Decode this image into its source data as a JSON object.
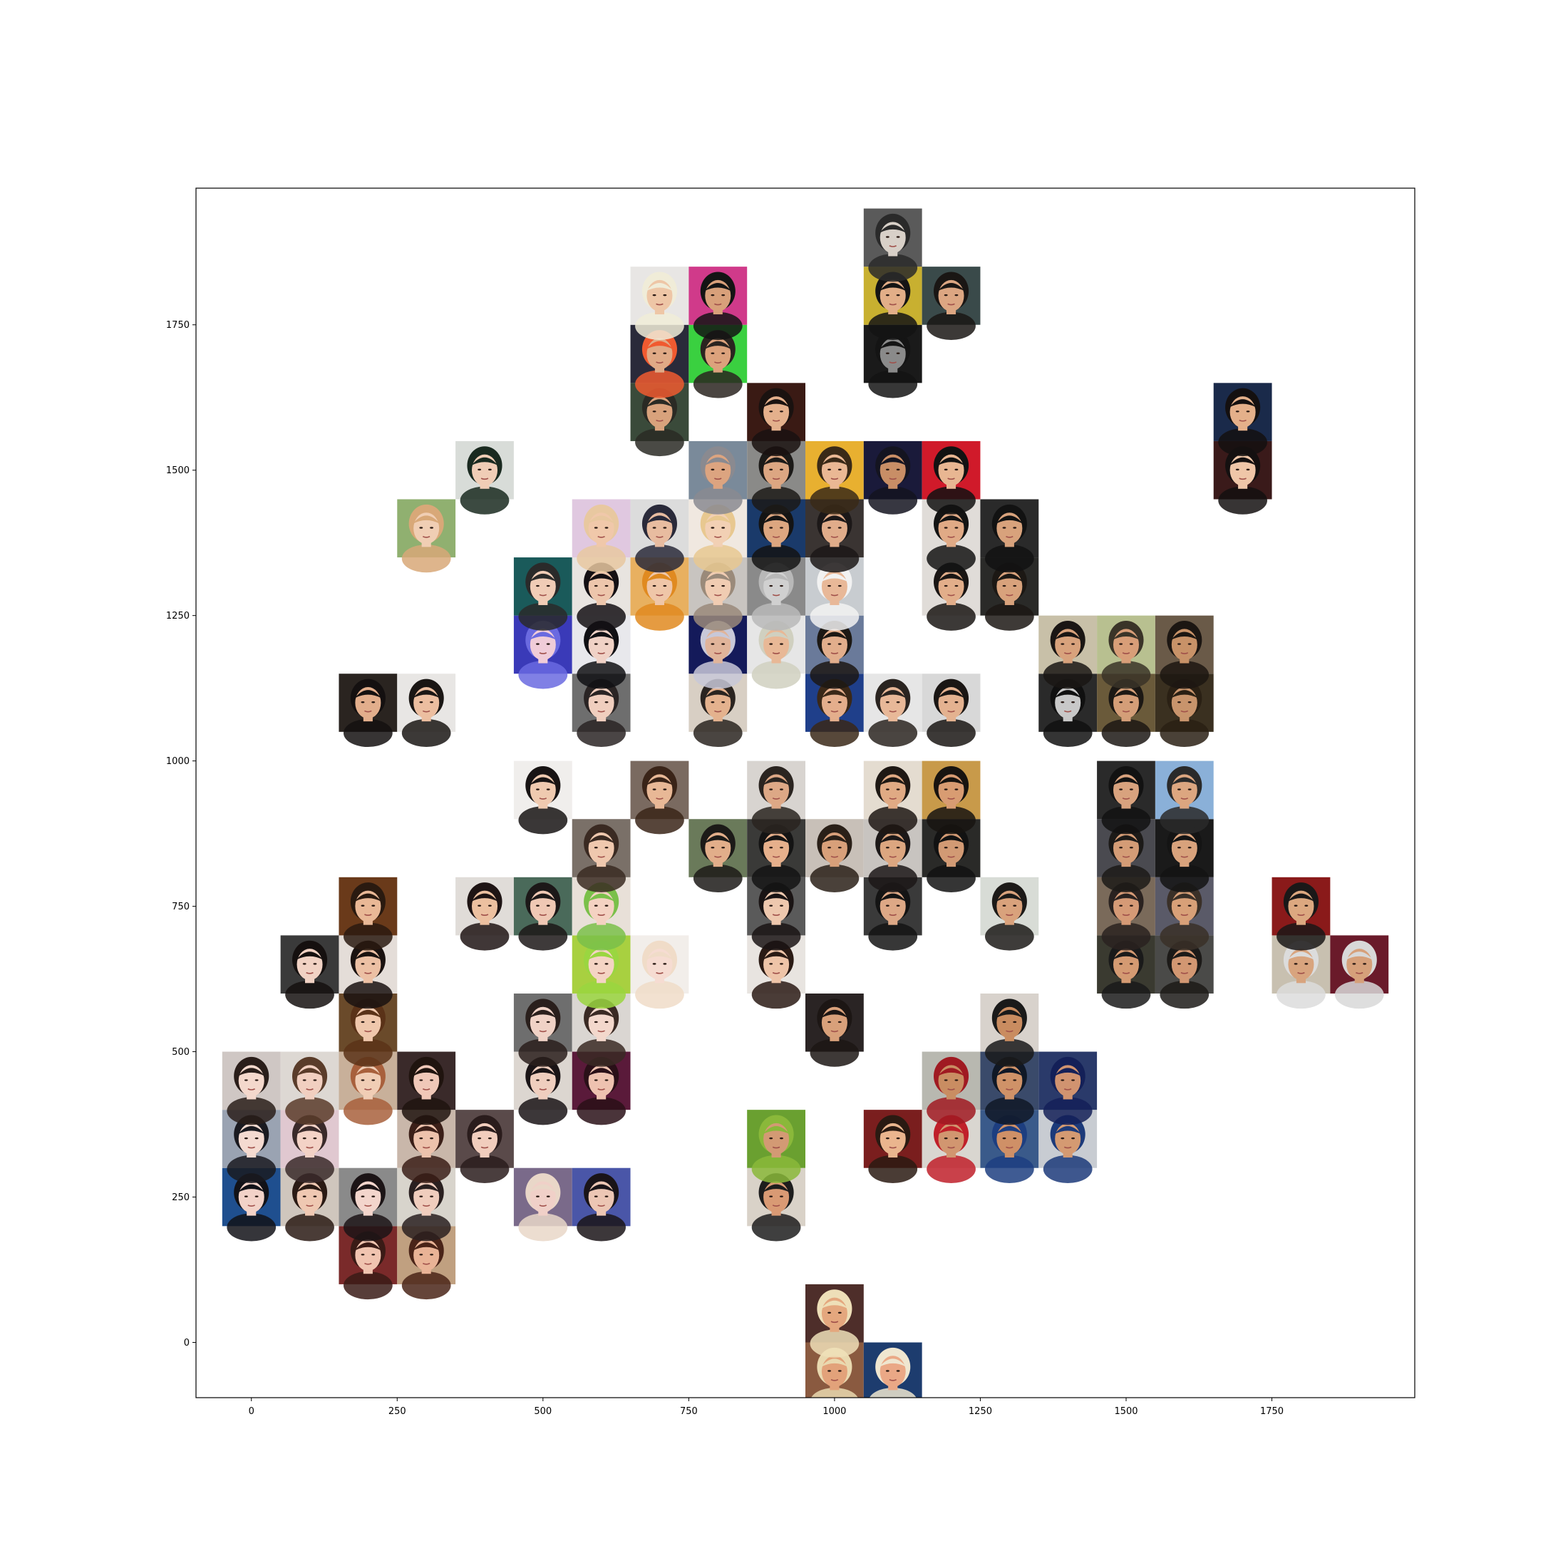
{
  "chart_data": {
    "type": "scatter",
    "marker": "face-thumbnail-image",
    "tile_size": 100,
    "title": "",
    "xlabel": "",
    "ylabel": "",
    "xlim": [
      -95,
      1995
    ],
    "ylim": [
      -95,
      1985
    ],
    "grid": false,
    "legend": "none",
    "xticks": [
      {
        "value": 0,
        "label": "0"
      },
      {
        "value": 250,
        "label": "250"
      },
      {
        "value": 500,
        "label": "500"
      },
      {
        "value": 750,
        "label": "750"
      },
      {
        "value": 1000,
        "label": "1000"
      },
      {
        "value": 1250,
        "label": "1250"
      },
      {
        "value": 1500,
        "label": "1500"
      },
      {
        "value": 1750,
        "label": "1750"
      }
    ],
    "yticks": [
      {
        "value": 0,
        "label": "0"
      },
      {
        "value": 250,
        "label": "250"
      },
      {
        "value": 500,
        "label": "500"
      },
      {
        "value": 750,
        "label": "750"
      },
      {
        "value": 1000,
        "label": "1000"
      },
      {
        "value": 1250,
        "label": "1250"
      },
      {
        "value": 1500,
        "label": "1500"
      },
      {
        "value": 1750,
        "label": "1750"
      }
    ],
    "points": [
      {
        "x": 1000,
        "y": -50,
        "bg": "#8a5a40",
        "skin": "#e2a27a",
        "hair": "#e9d9b0"
      },
      {
        "x": 1100,
        "y": -50,
        "bg": "#1d3c6e",
        "skin": "#eaa886",
        "hair": "#efe6d0"
      },
      {
        "x": 1000,
        "y": 50,
        "bg": "#4e2e2a",
        "skin": "#e4a77e",
        "hair": "#eedfb8"
      },
      {
        "x": 200,
        "y": 150,
        "bg": "#7a2a2a",
        "skin": "#f0c4b0",
        "hair": "#3a1b16"
      },
      {
        "x": 300,
        "y": 150,
        "bg": "#c0a080",
        "skin": "#e9b396",
        "hair": "#4a2418"
      },
      {
        "x": 0,
        "y": 250,
        "bg": "#1f4f8f",
        "skin": "#f2d2c8",
        "hair": "#121218"
      },
      {
        "x": 100,
        "y": 250,
        "bg": "#cfc6bd",
        "skin": "#efc8b2",
        "hair": "#2a1a14"
      },
      {
        "x": 200,
        "y": 250,
        "bg": "#8a8a8a",
        "skin": "#f3d5cc",
        "hair": "#1c1416"
      },
      {
        "x": 300,
        "y": 250,
        "bg": "#d8d4cc",
        "skin": "#f0cdbd",
        "hair": "#2a2020"
      },
      {
        "x": 500,
        "y": 250,
        "bg": "#7a6a8a",
        "skin": "#f0d0c8",
        "hair": "#e9d7c8"
      },
      {
        "x": 600,
        "y": 250,
        "bg": "#4a56a8",
        "skin": "#ecc6b4",
        "hair": "#1a1418"
      },
      {
        "x": 900,
        "y": 250,
        "bg": "#d9d2c8",
        "skin": "#d99a74",
        "hair": "#1d1d1d"
      },
      {
        "x": 0,
        "y": 350,
        "bg": "#9aa3b2",
        "skin": "#f4dad0",
        "hair": "#1a1a20"
      },
      {
        "x": 100,
        "y": 350,
        "bg": "#e0c8d0",
        "skin": "#f3d2c6",
        "hair": "#3a2a2a"
      },
      {
        "x": 300,
        "y": 350,
        "bg": "#c9b7aa",
        "skin": "#edc2ac",
        "hair": "#3b1f18"
      },
      {
        "x": 400,
        "y": 350,
        "bg": "#5a4a4a",
        "skin": "#f1cdbd",
        "hair": "#2a1c1c"
      },
      {
        "x": 900,
        "y": 350,
        "bg": "#6aa030",
        "skin": "#d39a74",
        "hair": "#8ab83a"
      },
      {
        "x": 1100,
        "y": 350,
        "bg": "#7a1e1e",
        "skin": "#eab58e",
        "hair": "#2a1a12"
      },
      {
        "x": 1200,
        "y": 350,
        "bg": "#d9d6d0",
        "skin": "#d19670",
        "hair": "#c0202a"
      },
      {
        "x": 1300,
        "y": 350,
        "bg": "#3a5a8a",
        "skin": "#cf9067",
        "hair": "#1d3e80"
      },
      {
        "x": 1400,
        "y": 350,
        "bg": "#c8ccd2",
        "skin": "#d49a72",
        "hair": "#1c3a7a"
      },
      {
        "x": 0,
        "y": 450,
        "bg": "#cfc7c4",
        "skin": "#f4d8cc",
        "hair": "#2a1e1a"
      },
      {
        "x": 100,
        "y": 450,
        "bg": "#ddd8d3",
        "skin": "#f1cfc0",
        "hair": "#5a3c2a"
      },
      {
        "x": 200,
        "y": 450,
        "bg": "#c8b09a",
        "skin": "#f0cdb5",
        "hair": "#a8603c"
      },
      {
        "x": 300,
        "y": 450,
        "bg": "#3a2a2a",
        "skin": "#f0c8b8",
        "hair": "#20140f"
      },
      {
        "x": 500,
        "y": 450,
        "bg": "#dcd6d0",
        "skin": "#efcebe",
        "hair": "#1a1416"
      },
      {
        "x": 600,
        "y": 450,
        "bg": "#5a1a3a",
        "skin": "#eec2b0",
        "hair": "#2a1018"
      },
      {
        "x": 1200,
        "y": 450,
        "bg": "#b8b8b0",
        "skin": "#c98d62",
        "hair": "#a01a22"
      },
      {
        "x": 1300,
        "y": 450,
        "bg": "#3a4a6a",
        "skin": "#cf9268",
        "hair": "#101826"
      },
      {
        "x": 1400,
        "y": 450,
        "bg": "#2a3a6a",
        "skin": "#d09370",
        "hair": "#142058"
      },
      {
        "x": 200,
        "y": 550,
        "bg": "#6a4a2a",
        "skin": "#efc7ac",
        "hair": "#5a3218"
      },
      {
        "x": 500,
        "y": 550,
        "bg": "#6e6e6e",
        "skin": "#f0d2c6",
        "hair": "#2a1f1c"
      },
      {
        "x": 600,
        "y": 550,
        "bg": "#dad6d2",
        "skin": "#f3d8cc",
        "hair": "#3a2a24"
      },
      {
        "x": 1000,
        "y": 550,
        "bg": "#2a2424",
        "skin": "#d8a07a",
        "hair": "#1c1614"
      },
      {
        "x": 1300,
        "y": 550,
        "bg": "#d8d2cc",
        "skin": "#c98c60",
        "hair": "#1a1a1a"
      },
      {
        "x": 100,
        "y": 650,
        "bg": "#3a3a3a",
        "skin": "#f1d2c4",
        "hair": "#15100f"
      },
      {
        "x": 200,
        "y": 650,
        "bg": "#e4ddd8",
        "skin": "#ecc0a4",
        "hair": "#1a1210"
      },
      {
        "x": 600,
        "y": 650,
        "bg": "#a8d040",
        "skin": "#f4d4c4",
        "hair": "#9ad640"
      },
      {
        "x": 700,
        "y": 650,
        "bg": "#f2eeea",
        "skin": "#f6dcd2",
        "hair": "#f0dcc8"
      },
      {
        "x": 900,
        "y": 650,
        "bg": "#e8e4e0",
        "skin": "#eec4a8",
        "hair": "#2a1a14"
      },
      {
        "x": 1500,
        "y": 650,
        "bg": "#3a3a30",
        "skin": "#d49a72",
        "hair": "#1a1a1a"
      },
      {
        "x": 1600,
        "y": 650,
        "bg": "#4a4a48",
        "skin": "#d29772",
        "hair": "#1c1a18"
      },
      {
        "x": 1800,
        "y": 650,
        "bg": "#c8c0b0",
        "skin": "#d8a47e",
        "hair": "#dcdcdc"
      },
      {
        "x": 1900,
        "y": 650,
        "bg": "#6a1a2a",
        "skin": "#d6a07a",
        "hair": "#d8d8d8"
      },
      {
        "x": 200,
        "y": 750,
        "bg": "#6a3a1a",
        "skin": "#e9b896",
        "hair": "#2a1a10"
      },
      {
        "x": 400,
        "y": 750,
        "bg": "#e0dcd8",
        "skin": "#ecc0a0",
        "hair": "#1e1414"
      },
      {
        "x": 500,
        "y": 750,
        "bg": "#4a6a5a",
        "skin": "#efc8b4",
        "hair": "#1c1818"
      },
      {
        "x": 600,
        "y": 750,
        "bg": "#e8e0d8",
        "skin": "#f4d2c2",
        "hair": "#7ac04a"
      },
      {
        "x": 900,
        "y": 750,
        "bg": "#5a5a5a",
        "skin": "#eec8ae",
        "hair": "#1a1414"
      },
      {
        "x": 1100,
        "y": 750,
        "bg": "#3a3a3a",
        "skin": "#dda886",
        "hair": "#141414"
      },
      {
        "x": 1300,
        "y": 750,
        "bg": "#d8dcd6",
        "skin": "#d9a27c",
        "hair": "#1c1a18"
      },
      {
        "x": 1500,
        "y": 750,
        "bg": "#7a6a5a",
        "skin": "#d59a76",
        "hair": "#2a2220"
      },
      {
        "x": 1600,
        "y": 750,
        "bg": "#5a5a68",
        "skin": "#d8a078",
        "hair": "#3a3028"
      },
      {
        "x": 1800,
        "y": 750,
        "bg": "#8a1a1a",
        "skin": "#dca880",
        "hair": "#1a1818"
      },
      {
        "x": 600,
        "y": 850,
        "bg": "#7a7068",
        "skin": "#efc8ae",
        "hair": "#3a2a22"
      },
      {
        "x": 800,
        "y": 850,
        "bg": "#6a7a5a",
        "skin": "#e2ae8a",
        "hair": "#1c1a18"
      },
      {
        "x": 900,
        "y": 850,
        "bg": "#3a3a38",
        "skin": "#e6b08c",
        "hair": "#141414"
      },
      {
        "x": 1000,
        "y": 850,
        "bg": "#c8c0b8",
        "skin": "#d8a07a",
        "hair": "#2a2018"
      },
      {
        "x": 1100,
        "y": 850,
        "bg": "#c8c4c0",
        "skin": "#dca680",
        "hair": "#1c1818"
      },
      {
        "x": 1200,
        "y": 850,
        "bg": "#2a2a28",
        "skin": "#d29a74",
        "hair": "#121212"
      },
      {
        "x": 1500,
        "y": 850,
        "bg": "#4a4a50",
        "skin": "#d49c76",
        "hair": "#1c1a18"
      },
      {
        "x": 1600,
        "y": 850,
        "bg": "#1a1a1a",
        "skin": "#d8a27c",
        "hair": "#141414"
      },
      {
        "x": 500,
        "y": 950,
        "bg": "#f0eeec",
        "skin": "#efcab0",
        "hair": "#181414"
      },
      {
        "x": 700,
        "y": 950,
        "bg": "#7a6a60",
        "skin": "#e8b896",
        "hair": "#3a2418"
      },
      {
        "x": 900,
        "y": 950,
        "bg": "#d8d4d0",
        "skin": "#dda886",
        "hair": "#2a2420"
      },
      {
        "x": 1100,
        "y": 950,
        "bg": "#e4dcd0",
        "skin": "#e0aa84",
        "hair": "#1e1814"
      },
      {
        "x": 1200,
        "y": 950,
        "bg": "#c89a4a",
        "skin": "#d89c72",
        "hair": "#181410"
      },
      {
        "x": 1500,
        "y": 950,
        "bg": "#2a2a2a",
        "skin": "#d8a27e",
        "hair": "#121212"
      },
      {
        "x": 1600,
        "y": 950,
        "bg": "#8ab0d8",
        "skin": "#dca680",
        "hair": "#2a2a2a"
      },
      {
        "x": 200,
        "y": 1100,
        "bg": "#2a2420",
        "skin": "#e2ae8c",
        "hair": "#141010"
      },
      {
        "x": 300,
        "y": 1100,
        "bg": "#e8e6e4",
        "skin": "#ecbea0",
        "hair": "#1a1614"
      },
      {
        "x": 600,
        "y": 1100,
        "bg": "#6e6e6e",
        "skin": "#f0cebe",
        "hair": "#2a2424"
      },
      {
        "x": 800,
        "y": 1100,
        "bg": "#d8cfc4",
        "skin": "#e4b28e",
        "hair": "#2a2420"
      },
      {
        "x": 1000,
        "y": 1100,
        "bg": "#1f3f8a",
        "skin": "#e4ae8c",
        "hair": "#3a2818"
      },
      {
        "x": 1100,
        "y": 1100,
        "bg": "#e6e6e6",
        "skin": "#e8b898",
        "hair": "#2a2420"
      },
      {
        "x": 1200,
        "y": 1100,
        "bg": "#d8d8d8",
        "skin": "#e4b290",
        "hair": "#1a1614"
      },
      {
        "x": 1400,
        "y": 1100,
        "bg": "#2a2a2a",
        "skin": "#c8c8c8",
        "hair": "#101010"
      },
      {
        "x": 1500,
        "y": 1100,
        "bg": "#6a5a3a",
        "skin": "#d49e78",
        "hair": "#1c1814"
      },
      {
        "x": 1600,
        "y": 1100,
        "bg": "#3a3020",
        "skin": "#c8946c",
        "hair": "#2a2014"
      },
      {
        "x": 500,
        "y": 1200,
        "bg": "#3a3ab8",
        "skin": "#f0ccd8",
        "hair": "#6a6ae0"
      },
      {
        "x": 600,
        "y": 1200,
        "bg": "#e8e8ec",
        "skin": "#f0d2c6",
        "hair": "#101014"
      },
      {
        "x": 800,
        "y": 1200,
        "bg": "#141a5a",
        "skin": "#e0b49a",
        "hair": "#c8c8d8"
      },
      {
        "x": 900,
        "y": 1200,
        "bg": "#e6e6e6",
        "skin": "#e8b896",
        "hair": "#d0d0c0"
      },
      {
        "x": 1000,
        "y": 1200,
        "bg": "#6a7a9a",
        "skin": "#e2ae8c",
        "hair": "#1c1814"
      },
      {
        "x": 1400,
        "y": 1200,
        "bg": "#c8c0a8",
        "skin": "#d8a27c",
        "hair": "#1a1614"
      },
      {
        "x": 1500,
        "y": 1200,
        "bg": "#b8c090",
        "skin": "#d89e78",
        "hair": "#3a3428"
      },
      {
        "x": 1600,
        "y": 1200,
        "bg": "#6a5a48",
        "skin": "#c89268",
        "hair": "#1c1612"
      },
      {
        "x": 500,
        "y": 1300,
        "bg": "#1a5a5a",
        "skin": "#f0ccb6",
        "hair": "#2a2a2a"
      },
      {
        "x": 600,
        "y": 1300,
        "bg": "#e8e4e0",
        "skin": "#edc6ac",
        "hair": "#141014"
      },
      {
        "x": 700,
        "y": 1300,
        "bg": "#e8b060",
        "skin": "#efc6a8",
        "hair": "#e08a20"
      },
      {
        "x": 800,
        "y": 1300,
        "bg": "#c8c4c0",
        "skin": "#f0ccb2",
        "hair": "#9a8a7a"
      },
      {
        "x": 900,
        "y": 1300,
        "bg": "#8a8a8a",
        "skin": "#d0d0d0",
        "hair": "#b8b8b8"
      },
      {
        "x": 1000,
        "y": 1300,
        "bg": "#c8ccd0",
        "skin": "#e8b898",
        "hair": "#f2f2f2"
      },
      {
        "x": 1200,
        "y": 1300,
        "bg": "#e0dcd8",
        "skin": "#e2ae8a",
        "hair": "#1a1614"
      },
      {
        "x": 1300,
        "y": 1300,
        "bg": "#2a2a28",
        "skin": "#d8a27c",
        "hair": "#1c1814"
      },
      {
        "x": 300,
        "y": 1400,
        "bg": "#90b070",
        "skin": "#f0ceb4",
        "hair": "#d8a878"
      },
      {
        "x": 600,
        "y": 1400,
        "bg": "#e0c8e0",
        "skin": "#f0c8aa",
        "hair": "#e8c8a0"
      },
      {
        "x": 700,
        "y": 1400,
        "bg": "#dcdcdc",
        "skin": "#e8bca0",
        "hair": "#2a2a3a"
      },
      {
        "x": 800,
        "y": 1400,
        "bg": "#f0e8e0",
        "skin": "#f2d0b4",
        "hair": "#e8c890"
      },
      {
        "x": 900,
        "y": 1400,
        "bg": "#1a3a6a",
        "skin": "#dca680",
        "hair": "#141414"
      },
      {
        "x": 1000,
        "y": 1400,
        "bg": "#3a3432",
        "skin": "#e0ac8a",
        "hair": "#1c1818"
      },
      {
        "x": 1200,
        "y": 1400,
        "bg": "#e0dcd8",
        "skin": "#e0aa86",
        "hair": "#141414"
      },
      {
        "x": 1300,
        "y": 1400,
        "bg": "#2a2a2a",
        "skin": "#d8a27c",
        "hair": "#121212"
      },
      {
        "x": 400,
        "y": 1500,
        "bg": "#d8dcd8",
        "skin": "#f0cdb6",
        "hair": "#1a2a20"
      },
      {
        "x": 800,
        "y": 1500,
        "bg": "#7a8a9a",
        "skin": "#dca480",
        "hair": "#8a8a90"
      },
      {
        "x": 900,
        "y": 1500,
        "bg": "#8a8a88",
        "skin": "#dca682",
        "hair": "#1c1a18"
      },
      {
        "x": 1000,
        "y": 1500,
        "bg": "#e8b030",
        "skin": "#eab894",
        "hair": "#3a2a18"
      },
      {
        "x": 1100,
        "y": 1500,
        "bg": "#1a1a3a",
        "skin": "#c88e66",
        "hair": "#141420"
      },
      {
        "x": 1200,
        "y": 1500,
        "bg": "#d01a2a",
        "skin": "#e8b692",
        "hair": "#121212"
      },
      {
        "x": 1700,
        "y": 1500,
        "bg": "#3a1a1a",
        "skin": "#efc6a8",
        "hair": "#141010"
      },
      {
        "x": 700,
        "y": 1600,
        "bg": "#3a4a3a",
        "skin": "#d8a27c",
        "hair": "#2a2a24"
      },
      {
        "x": 900,
        "y": 1600,
        "bg": "#3a1a14",
        "skin": "#e4b08c",
        "hair": "#1a1210"
      },
      {
        "x": 1700,
        "y": 1600,
        "bg": "#1a2a4a",
        "skin": "#e4b08a",
        "hair": "#141010"
      },
      {
        "x": 700,
        "y": 1700,
        "bg": "#2a2a3a",
        "skin": "#e0aa86",
        "hair": "#f05a30"
      },
      {
        "x": 800,
        "y": 1700,
        "bg": "#3ad040",
        "skin": "#dca27c",
        "hair": "#2a2420"
      },
      {
        "x": 1100,
        "y": 1700,
        "bg": "#1a1a1a",
        "skin": "#8a8a8a",
        "hair": "#141414"
      },
      {
        "x": 700,
        "y": 1800,
        "bg": "#e8e6e4",
        "skin": "#eec6a6",
        "hair": "#f0ecd8"
      },
      {
        "x": 800,
        "y": 1800,
        "bg": "#d03a8a",
        "skin": "#d8a07a",
        "hair": "#141414"
      },
      {
        "x": 1100,
        "y": 1800,
        "bg": "#c8b030",
        "skin": "#e2ae88",
        "hair": "#141414"
      },
      {
        "x": 1200,
        "y": 1800,
        "bg": "#3a4a4a",
        "skin": "#dca682",
        "hair": "#1a1614"
      },
      {
        "x": 1100,
        "y": 1900,
        "bg": "#5a5a5a",
        "skin": "#d8d0c8",
        "hair": "#2a2a2a"
      }
    ]
  }
}
